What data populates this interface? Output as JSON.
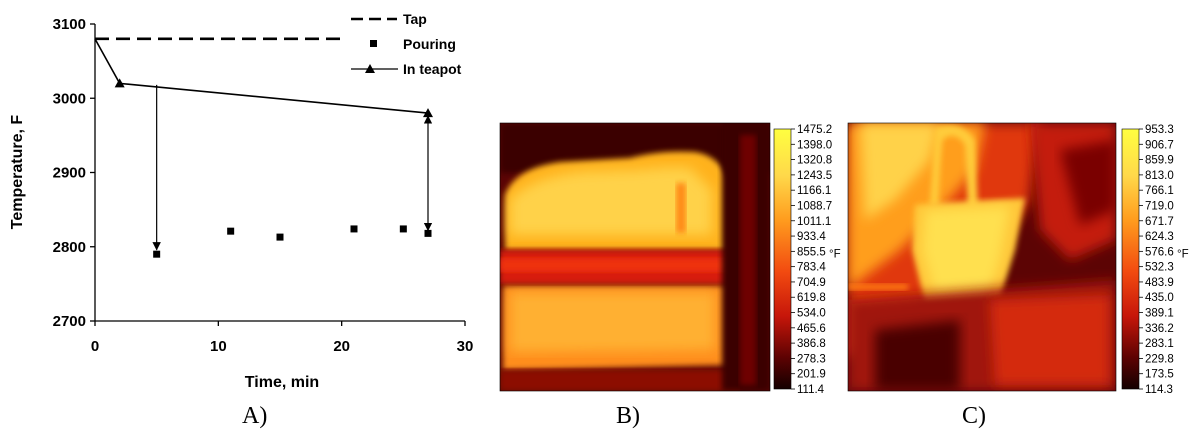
{
  "panel_labels": {
    "a": "A)",
    "b": "B)",
    "c": "C)"
  },
  "chart_data": [
    {
      "type": "line",
      "title": "",
      "xlabel": "Time, min",
      "ylabel": "Temperature, F",
      "xlim": [
        0,
        30
      ],
      "ylim": [
        2700,
        3100
      ],
      "xticks": [
        0,
        10,
        20,
        30
      ],
      "yticks": [
        2700,
        2800,
        2900,
        3000,
        3100
      ],
      "grid": false,
      "legend_position": "top-right",
      "series": [
        {
          "name": "Tap",
          "style": "dashed-line",
          "points": [
            [
              0,
              3080
            ],
            [
              34,
              3080
            ]
          ]
        },
        {
          "name": "Pouring",
          "style": "square-markers",
          "points": [
            [
              5,
              2790
            ],
            [
              11,
              2821
            ],
            [
              15,
              2813
            ],
            [
              21,
              2824
            ],
            [
              25,
              2824
            ],
            [
              27,
              2818
            ]
          ]
        },
        {
          "name": "In teapot",
          "style": "line-triangle-markers",
          "points": [
            [
              0,
              3080
            ],
            [
              2,
              3020
            ],
            [
              27,
              2980
            ]
          ]
        }
      ],
      "annotations": [
        {
          "type": "arrow-down",
          "x": 5,
          "from": 3018,
          "to": 2796
        },
        {
          "type": "double-arrow",
          "x": 27,
          "from": 2976,
          "to": 2822
        }
      ]
    },
    {
      "type": "heatmap",
      "unit": "°F",
      "colorbar_ticks": [
        "1475.2",
        "1398.0",
        "1320.8",
        "1243.5",
        "1166.1",
        "1088.7",
        "1011.1",
        "933.4",
        "855.5",
        "783.4",
        "704.9",
        "619.8",
        "534.0",
        "465.6",
        "386.8",
        "278.3",
        "201.9",
        "111.4"
      ],
      "unit_after_tick": "855.5"
    },
    {
      "type": "heatmap",
      "unit": "°F",
      "colorbar_ticks": [
        "953.3",
        "906.7",
        "859.9",
        "813.0",
        "766.1",
        "719.0",
        "671.7",
        "624.3",
        "576.6",
        "532.3",
        "483.9",
        "435.0",
        "389.1",
        "336.2",
        "283.1",
        "229.8",
        "173.5",
        "114.3"
      ],
      "unit_after_tick": "576.6"
    }
  ]
}
